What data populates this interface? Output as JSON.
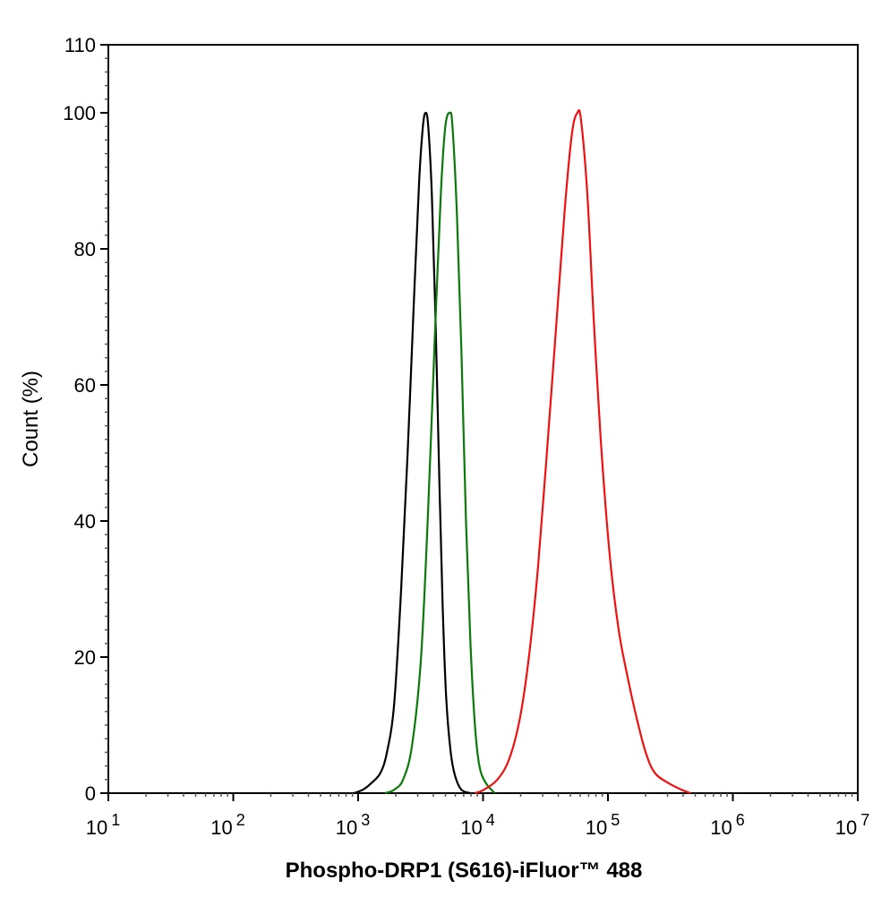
{
  "chart_data": {
    "type": "line",
    "title": "",
    "xlabel": "Phospho-DRP1 (S616)-iFluor™ 488",
    "ylabel": "Count  (%)",
    "x_scale": "log",
    "xlim": [
      10,
      10000000
    ],
    "ylim": [
      0,
      110
    ],
    "x_ticks": [
      {
        "base": "10",
        "exp": "1"
      },
      {
        "base": "10",
        "exp": "2"
      },
      {
        "base": "10",
        "exp": "3"
      },
      {
        "base": "10",
        "exp": "4"
      },
      {
        "base": "10",
        "exp": "5"
      },
      {
        "base": "10",
        "exp": "6"
      },
      {
        "base": "10",
        "exp": "7"
      }
    ],
    "y_ticks": [
      "0",
      "20",
      "40",
      "60",
      "80",
      "100",
      "110"
    ],
    "grid": false,
    "legend": "none",
    "series": [
      {
        "color": "#000000",
        "x": [
          920,
          1090,
          1280,
          1510,
          1700,
          1940,
          2210,
          2490,
          2790,
          3080,
          3300,
          3470,
          3640,
          3890,
          4160,
          4440,
          4740,
          5070,
          5510,
          5980,
          6710,
          7930
        ],
        "y": [
          0,
          0.5,
          1.5,
          3,
          6,
          13,
          30,
          50,
          72,
          90,
          98,
          100,
          98,
          88,
          70,
          48,
          28,
          14,
          6,
          2.5,
          0.5,
          0
        ]
      },
      {
        "color": "#0a7a0a",
        "x": [
          1640,
          1940,
          2290,
          2700,
          3190,
          3640,
          4090,
          4590,
          4990,
          5420,
          5690,
          6180,
          6710,
          7300,
          7930,
          8610,
          9350,
          10520,
          12410
        ],
        "y": [
          0,
          0.5,
          2,
          7,
          20,
          42,
          66,
          88,
          98,
          100,
          98,
          85,
          65,
          40,
          22,
          10,
          4,
          1.5,
          0
        ]
      },
      {
        "color": "#ee1111",
        "x": [
          8610,
          10160,
          13030,
          16180,
          19720,
          23280,
          27480,
          32430,
          38280,
          45180,
          51520,
          56890,
          60810,
          68390,
          76740,
          87500,
          103300,
          121900,
          143900,
          169900,
          200400,
          236600,
          303400,
          389000,
          459200
        ],
        "y": [
          0,
          0.5,
          2,
          5,
          11,
          20,
          33,
          50,
          68,
          86,
          97,
          100,
          99,
          88,
          70,
          52,
          35,
          24,
          17,
          11,
          6,
          3,
          1.5,
          0.5,
          0
        ]
      }
    ]
  }
}
